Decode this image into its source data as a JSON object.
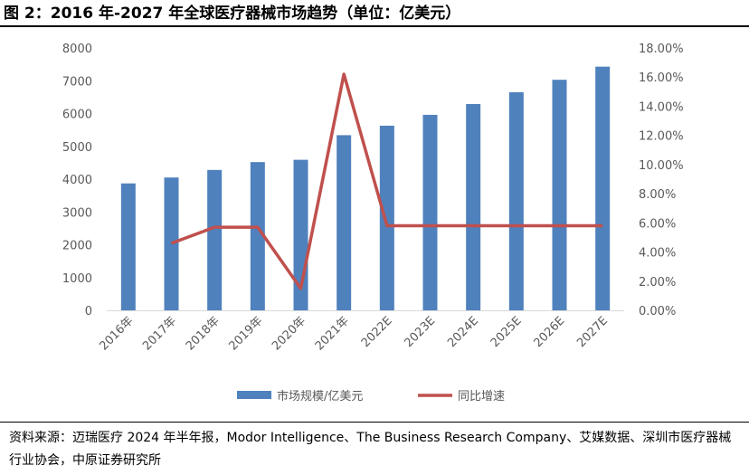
{
  "title": "图 2：2016 年-2027 年全球医疗器械市场趋势（单位：亿美元）",
  "source": "资料来源：迈瑞医疗 2024 年半年报，Modor Intelligence、The Business Research Company、艾媒数据、深圳市医疗器械行业协会，中原证券研究所",
  "colors": {
    "bar": "#4f81bd",
    "line": "#c0504d",
    "text": "#595959"
  },
  "chart_data": {
    "type": "bar",
    "categories": [
      "2016年",
      "2017年",
      "2018年",
      "2019年",
      "2020年",
      "2021年",
      "2022E",
      "2023E",
      "2024E",
      "2025E",
      "2026E",
      "2027E"
    ],
    "series": [
      {
        "name": "市场规模/亿美元",
        "kind": "bar",
        "axis": "left",
        "values": [
          3870,
          4050,
          4280,
          4520,
          4590,
          5340,
          5630,
          5960,
          6290,
          6650,
          7030,
          7430
        ]
      },
      {
        "name": "同比增速",
        "kind": "line",
        "axis": "right",
        "values": [
          null,
          4.6,
          5.7,
          5.7,
          1.5,
          16.2,
          5.8,
          5.8,
          5.8,
          5.8,
          5.8,
          5.8
        ]
      }
    ],
    "y_left": {
      "min": 0,
      "max": 8000,
      "step": 1000,
      "tick_labels": [
        "0",
        "1000",
        "2000",
        "3000",
        "4000",
        "5000",
        "6000",
        "7000",
        "8000"
      ]
    },
    "y_right": {
      "min": 0,
      "max": 18,
      "step": 2,
      "tick_labels": [
        "0.00%",
        "2.00%",
        "4.00%",
        "6.00%",
        "8.00%",
        "10.00%",
        "12.00%",
        "14.00%",
        "16.00%",
        "18.00%"
      ]
    },
    "legend_position": "bottom-center",
    "grid": false
  }
}
